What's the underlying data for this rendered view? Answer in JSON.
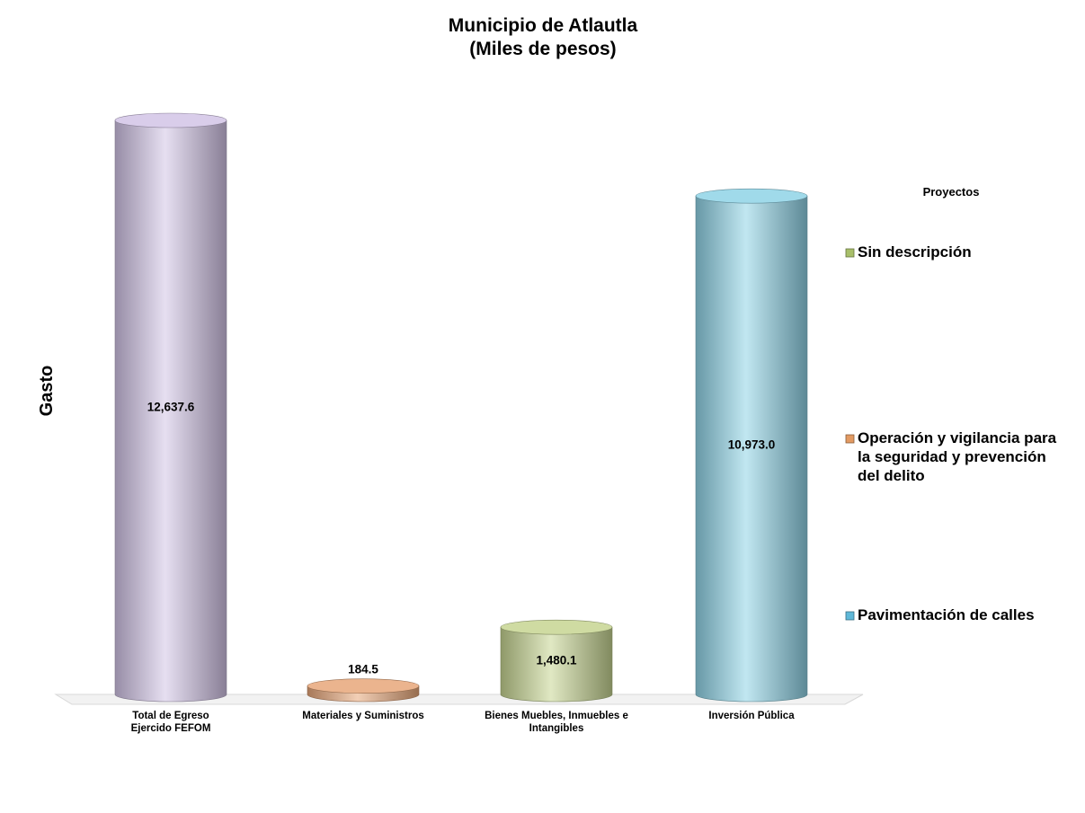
{
  "chart_data": {
    "type": "bar",
    "title": [
      "Municipio de Atlautla",
      "(Miles de pesos)"
    ],
    "ylabel": "Gasto",
    "categories": [
      [
        "Total de Egreso",
        "Ejercido FEFOM"
      ],
      [
        "Materiales y Suministros"
      ],
      [
        "Bienes Muebles, Inmuebles e",
        "Intangibles"
      ],
      [
        "Inversión Pública"
      ]
    ],
    "values": [
      12637.6,
      184.5,
      1480.1,
      10973.0
    ],
    "value_labels": [
      "12,637.6",
      "184.5",
      "1,480.1",
      "10,973.0"
    ],
    "bar_colors": [
      "#d2c4e6",
      "#e8a77a",
      "#c6d592",
      "#8fd3e6"
    ],
    "ylim": [
      0,
      12637.6
    ],
    "grid": false,
    "legend": {
      "title": "Proyectos",
      "placement": "right",
      "items": [
        {
          "lines": [
            "Sin descripción"
          ],
          "color": "#a8bf6a"
        },
        {
          "lines": [
            "Operación y vigilancia para",
            "la seguridad y prevención",
            "del delito"
          ],
          "color": "#e39a62"
        },
        {
          "lines": [
            "Pavimentación de calles"
          ],
          "color": "#5fb8d8"
        }
      ]
    }
  }
}
